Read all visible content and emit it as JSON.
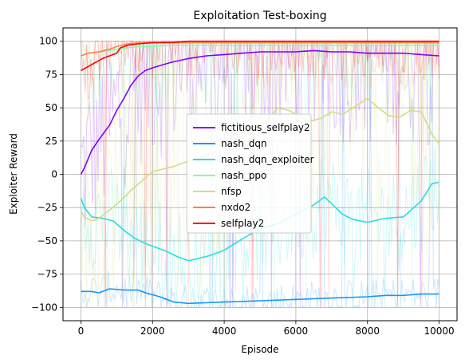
{
  "chart_data": {
    "type": "line",
    "title": "Exploitation Test-boxing",
    "xlabel": "Episode",
    "ylabel": "Exploiter Reward",
    "xlim": [
      -500,
      10500
    ],
    "ylim": [
      -110,
      110
    ],
    "xticks": [
      0,
      2000,
      4000,
      6000,
      8000,
      10000
    ],
    "xtick_labels": [
      "0",
      "2000",
      "4000",
      "6000",
      "8000",
      "10000"
    ],
    "yticks": [
      -100,
      -75,
      -50,
      -25,
      0,
      25,
      50,
      75,
      100
    ],
    "ytick_labels": [
      "−100",
      "−75",
      "−50",
      "−25",
      "0",
      "25",
      "50",
      "75",
      "100"
    ],
    "grid": true,
    "legend_loc": "center",
    "series": [
      {
        "name": "fictitious_selfplay2",
        "color": "#8000ff",
        "x": [
          0,
          100,
          300,
          500,
          800,
          1000,
          1200,
          1400,
          1600,
          1800,
          2000,
          2500,
          3000,
          3500,
          4000,
          4500,
          5000,
          5500,
          6000,
          6500,
          7000,
          7500,
          8000,
          8500,
          9000,
          9500,
          10000
        ],
        "y": [
          0,
          5,
          18,
          26,
          37,
          48,
          57,
          67,
          74,
          78,
          80,
          84,
          87,
          89,
          90,
          91,
          92,
          92,
          92,
          93,
          92,
          92,
          91,
          91,
          91,
          90,
          89
        ]
      },
      {
        "name": "nash_dqn",
        "color": "#1996f3",
        "x": [
          0,
          300,
          500,
          800,
          1200,
          1600,
          1800,
          2200,
          2600,
          3000,
          4000,
          5000,
          6000,
          7000,
          8000,
          8500,
          9000,
          9500,
          10000
        ],
        "y": [
          -88,
          -88,
          -89,
          -86,
          -87,
          -87,
          -89,
          -92,
          -96,
          -97,
          -96,
          -95,
          -94,
          -93,
          -92,
          -91,
          -91,
          -90,
          -90
        ]
      },
      {
        "name": "nash_dqn_exploiter",
        "color": "#2adddd",
        "x": [
          0,
          100,
          300,
          600,
          900,
          1200,
          1500,
          1800,
          2100,
          2400,
          2700,
          3000,
          3300,
          3600,
          4000,
          4300,
          4600,
          5000,
          5500,
          6000,
          6500,
          6800,
          7000,
          7300,
          7600,
          8000,
          8500,
          9000,
          9500,
          9800,
          10000
        ],
        "y": [
          -18,
          -25,
          -32,
          -33,
          -35,
          -42,
          -48,
          -52,
          -55,
          -58,
          -62,
          -65,
          -63,
          -61,
          -57,
          -52,
          -47,
          -41,
          -37,
          -30,
          -23,
          -17,
          -22,
          -30,
          -34,
          -36,
          -33,
          -32,
          -20,
          -7,
          -6
        ]
      },
      {
        "name": "nash_ppo",
        "color": "#80ffb4",
        "x": [
          0,
          200,
          500,
          800,
          1000,
          1300,
          1600,
          2000,
          2500,
          3000,
          4000,
          5000,
          6000,
          7000,
          8000,
          9000,
          10000
        ],
        "y": [
          89,
          91,
          92,
          93,
          94,
          95,
          96,
          96,
          97,
          97,
          97,
          97,
          97,
          97,
          97,
          97,
          97
        ]
      },
      {
        "name": "nfsp",
        "color": "#d4dd80",
        "x": [
          0,
          100,
          300,
          500,
          800,
          1100,
          1400,
          1700,
          2000,
          2300,
          2600,
          3000,
          3300,
          3600,
          4000,
          4300,
          4600,
          4900,
          5200,
          5500,
          5800,
          6100,
          6400,
          6700,
          7000,
          7300,
          7600,
          8000,
          8300,
          8600,
          8900,
          9200,
          9500,
          9800,
          10000
        ],
        "y": [
          -28,
          -32,
          -35,
          -33,
          -27,
          -20,
          -12,
          -5,
          2,
          4,
          6,
          10,
          12,
          15,
          20,
          26,
          30,
          35,
          41,
          50,
          48,
          44,
          40,
          42,
          47,
          45,
          50,
          57,
          50,
          44,
          43,
          48,
          47,
          30,
          23
        ]
      },
      {
        "name": "nxdo2",
        "color": "#ff8046",
        "x": [
          0,
          200,
          500,
          800,
          1000,
          1300,
          1600,
          2000,
          3000,
          4000,
          5000,
          6000,
          7000,
          8000,
          9000,
          10000
        ],
        "y": [
          89,
          91,
          92,
          94,
          96,
          98,
          99,
          99,
          99,
          99,
          99,
          99,
          99,
          99,
          99,
          99
        ]
      },
      {
        "name": "selfplay2",
        "color": "#ff0000",
        "x": [
          0,
          200,
          400,
          600,
          800,
          1000,
          1100,
          1300,
          1600,
          2000,
          2500,
          3000,
          4000,
          5000,
          6000,
          7000,
          8000,
          9000,
          10000
        ],
        "y": [
          78,
          81,
          84,
          87,
          89,
          91,
          95,
          97,
          98,
          99,
          99,
          100,
          100,
          100,
          100,
          100,
          100,
          100,
          100
        ]
      }
    ]
  }
}
